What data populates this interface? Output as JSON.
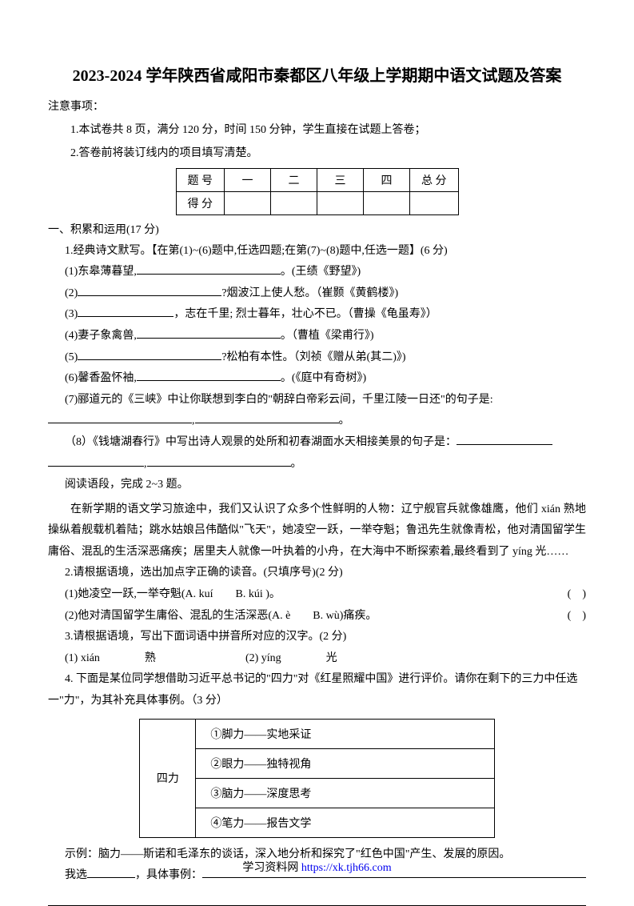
{
  "title": "2023-2024 学年陕西省咸阳市秦都区八年级上学期期中语文试题及答案",
  "notes_label": "注意事项：",
  "note1": "1.本试卷共 8 页，满分 120 分，时间 150 分钟，学生直接在试题上答卷；",
  "note2": "2.答卷前将装订线内的项目填写清楚。",
  "table": {
    "row1": [
      "题 号",
      "一",
      "二",
      "三",
      "四",
      "总 分"
    ],
    "row2_label": "得 分"
  },
  "section1": {
    "heading": "一、积累和运用(17 分)",
    "q1": "1.经典诗文默写。【在第(1)~(6)题中,任选四题;在第(7)~(8)题中,任选一题】(6 分)",
    "q1_1a": "(1)东皋薄暮望,",
    "q1_1b": "。(王绩《野望》)",
    "q1_2a": "(2)",
    "q1_2b": "?烟波江上使人愁。（崔颢《黄鹤楼》)",
    "q1_3a": "(3)",
    "q1_3b": "，志在千里; 烈士暮年，壮心不已。（曹操《龟虽寿》）",
    "q1_4a": "(4)妻子象禽兽,",
    "q1_4b": "。（曹植《梁甫行》)",
    "q1_5a": "(5)",
    "q1_5b": "?松柏有本性。（刘祯《赠从弟(其二)》)",
    "q1_6a": "(6)馨香盈怀袖,",
    "q1_6b": "。(《庭中有奇树》)",
    "q1_7": "(7)郦道元的《三峡》中让你联想到李白的\"朝辞白帝彩云间，千里江陵一日还\"的句子是:",
    "q1_8": "（8）《钱塘湖春行》中写出诗人观景的处所和初春湖面水天相接美景的句子是：",
    "paragraph_intro": "阅读语段，完成 2~3 题。",
    "paragraph_body": "在新学期的语文学习旅途中，我们又认识了众多个性鲜明的人物：辽宁舰官兵就像雄鹰，他们 xián 熟地操纵着舰载机着陆；跳水姑娘吕伟酷似\"飞天\"，她凌空一跃，一举夺魁；鲁迅先生就像青松，他对清国留学生庸俗、混乱的生活深恶痛疾；居里夫人就像一叶执着的小舟，在大海中不断探索着,最终看到了 yíng 光……",
    "q2": "2.请根据语境，选出加点字正确的读音。(只填序号)(2 分)",
    "q2_1": "(1)她凌空一跃,一举夺魁(A. kuí　　B. kúi )。",
    "q2_2": "(2)他对清国留学生庸俗、混乱的生活深恶(A. è　　B. wù)痛疾。",
    "paren_text": "(　)",
    "q3": "3.请根据语境，写出下面词语中拼音所对应的汉字。(2 分)",
    "q3_1": "(1) xián　　　　熟",
    "q3_2": "(2) yíng　　　　光",
    "q4": "4. 下面是某位同学想借助习近平总书记的\"四力\"对《红星照耀中国》进行评价。请你在剩下的三力中任选一\"力\"，为其补充具体事例。（3 分）",
    "sili": {
      "left": "四力",
      "r1": "①脚力——实地采证",
      "r2": "②眼力——独特视角",
      "r3": "③脑力——深度思考",
      "r4": "④笔力——报告文学"
    },
    "example": "示例：脑力——斯诺和毛泽东的谈话，深入地分析和探究了\"红色中国\"产生、发展的原因。",
    "choose_a": "我选",
    "choose_b": "，具体事例：",
    "period": "。"
  },
  "footer": {
    "text": "学习资料网 ",
    "link": "https://xk.tjh66.com"
  }
}
